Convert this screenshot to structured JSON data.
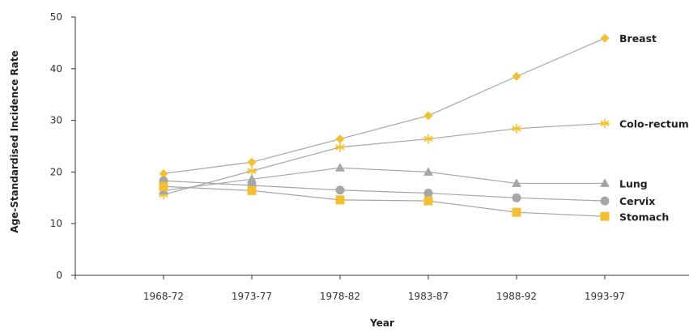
{
  "chart_data": {
    "type": "line",
    "title": "",
    "xlabel": "Year",
    "ylabel": "Age-Standardised Incidence Rate",
    "categories": [
      "1968-72",
      "1973-77",
      "1978-82",
      "1983-87",
      "1988-92",
      "1993-97"
    ],
    "ylim": [
      0,
      50
    ],
    "yticks": [
      0,
      10,
      20,
      30,
      40,
      50
    ],
    "grid": false,
    "legend": "inline labels at line ends",
    "series": [
      {
        "name": "Breast",
        "marker": "diamond",
        "color": "#f5c02e",
        "values": [
          19.7,
          21.9,
          26.4,
          30.9,
          38.5,
          45.9
        ]
      },
      {
        "name": "Colo-rectum",
        "marker": "asterisk",
        "color": "#f5c02e",
        "values": [
          15.6,
          20.2,
          24.8,
          26.4,
          28.4,
          29.4
        ]
      },
      {
        "name": "Lung",
        "marker": "triangle",
        "color": "#a6a6a6",
        "values": [
          16.4,
          18.6,
          20.8,
          20.0,
          17.8,
          17.8
        ]
      },
      {
        "name": "Cervix",
        "marker": "circle",
        "color": "#a6a6a6",
        "values": [
          18.3,
          17.4,
          16.5,
          15.9,
          15.0,
          14.4
        ]
      },
      {
        "name": "Stomach",
        "marker": "square",
        "color": "#f5c02e",
        "values": [
          17.2,
          16.4,
          14.6,
          14.4,
          12.2,
          11.4
        ]
      }
    ]
  },
  "colors": {
    "line": "#a6a6a6",
    "axis": "#333333"
  }
}
